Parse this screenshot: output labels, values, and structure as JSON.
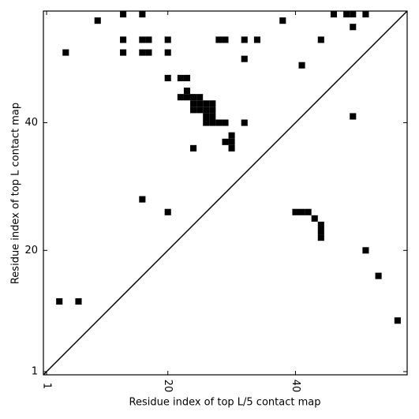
{
  "chart_data": {
    "type": "scatter",
    "marker": "square",
    "color": "#000000",
    "x_label": "Residue index of top L/5 contact map",
    "y_label": "Residue index of top L contact map",
    "x": [
      9,
      13,
      16,
      13,
      16,
      17,
      20,
      4,
      13,
      16,
      17,
      20,
      28,
      29,
      32,
      34,
      32,
      38,
      44,
      46,
      48,
      49,
      51,
      49,
      41,
      20,
      22,
      23,
      23,
      22,
      23,
      24,
      25,
      24,
      25,
      26,
      27,
      24,
      25,
      26,
      27,
      26,
      27,
      26,
      27,
      28,
      29,
      32,
      30,
      29,
      30,
      30,
      24,
      49,
      16,
      20,
      3,
      6,
      40,
      41,
      42,
      43,
      44,
      44,
      44,
      51,
      53,
      56
    ],
    "values": [
      56,
      57,
      57,
      53,
      53,
      53,
      53,
      51,
      51,
      51,
      51,
      51,
      53,
      53,
      53,
      53,
      50,
      56,
      53,
      57,
      57,
      57,
      57,
      55,
      49,
      47,
      47,
      47,
      45,
      44,
      44,
      44,
      44,
      43,
      43,
      43,
      43,
      42,
      42,
      42,
      42,
      41,
      41,
      40,
      40,
      40,
      40,
      40,
      38,
      37,
      37,
      36,
      36,
      41,
      28,
      26,
      12,
      12,
      26,
      26,
      26,
      25,
      24,
      23,
      22,
      20,
      16,
      9
    ],
    "xlim": [
      0.5,
      57.5
    ],
    "ylim": [
      0.5,
      57.5
    ],
    "xticks": [
      1,
      20,
      40
    ],
    "yticks": [
      1,
      20,
      40
    ],
    "diagonal": true
  }
}
